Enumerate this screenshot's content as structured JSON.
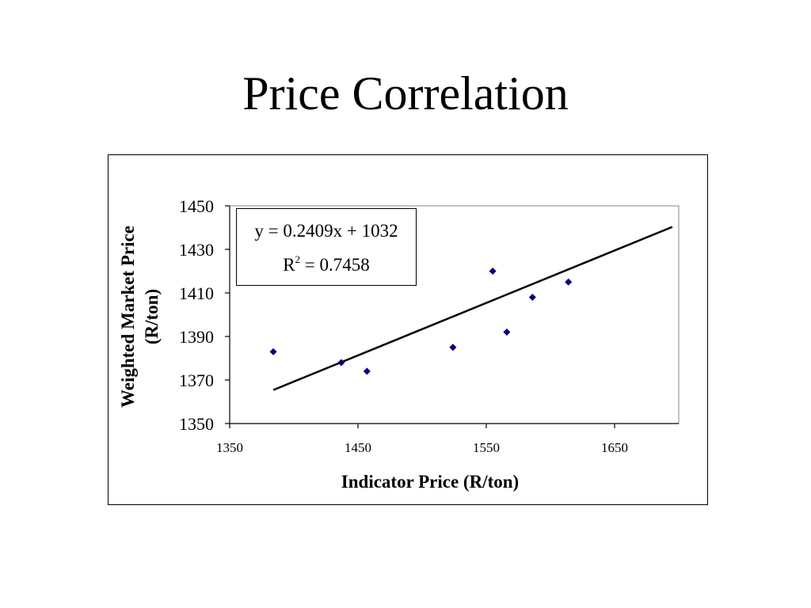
{
  "slide": {
    "title": "Price Correlation"
  },
  "chart_data": {
    "type": "scatter",
    "title": "",
    "xlabel": "Indicator Price (R/ton)",
    "ylabel_lines": [
      "Weighted Market Price",
      "(R/ton)"
    ],
    "xlim": [
      1350,
      1700
    ],
    "ylim": [
      1350,
      1450
    ],
    "xticks": [
      1350,
      1450,
      1550,
      1650
    ],
    "yticks": [
      1350,
      1370,
      1390,
      1410,
      1430,
      1450
    ],
    "grid": false,
    "legend": "none",
    "marker_color": "#00007f",
    "series": [
      {
        "points": [
          [
            1384,
            1383
          ],
          [
            1437,
            1378
          ],
          [
            1457,
            1374
          ],
          [
            1524,
            1385
          ],
          [
            1555,
            1420
          ],
          [
            1566,
            1392
          ],
          [
            1586,
            1408
          ],
          [
            1614,
            1415
          ]
        ]
      }
    ],
    "trendline": {
      "slope": 0.2409,
      "intercept": 1032,
      "x_range": [
        1384,
        1695
      ],
      "equation": "y = 0.2409x + 1032",
      "r2_prefix": "R",
      "r2_sup": "2",
      "r2_suffix": " = 0.7458"
    }
  }
}
